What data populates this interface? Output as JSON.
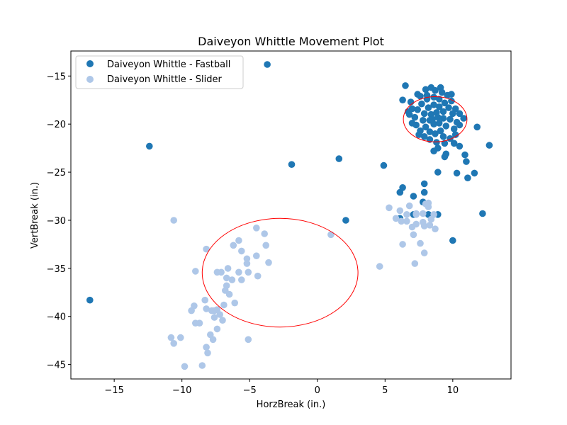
{
  "chart_data": {
    "type": "scatter",
    "title": "Daiveyon Whittle Movement Plot",
    "xlabel": "HorzBreak (in.)",
    "ylabel": "VertBreak (in.)",
    "xlim": [
      -18.2,
      14.3
    ],
    "ylim": [
      -46.5,
      -12.4
    ],
    "xticks": [
      -15,
      -10,
      -5,
      0,
      5,
      10
    ],
    "yticks": [
      -15,
      -20,
      -25,
      -30,
      -35,
      -40,
      -45
    ],
    "grid": false,
    "legend": {
      "placement": "top-left"
    },
    "series": [
      {
        "name": "Daiveyon Whittle - Fastball",
        "color": "#1f77b4",
        "points": [
          [
            -3.7,
            -13.8
          ],
          [
            -12.4,
            -22.3
          ],
          [
            -1.9,
            -24.2
          ],
          [
            1.6,
            -23.6
          ],
          [
            4.9,
            -24.3
          ],
          [
            2.1,
            -30.0
          ],
          [
            -16.8,
            -38.3
          ],
          [
            6.3,
            -26.6
          ],
          [
            7.9,
            -26.2
          ],
          [
            7.1,
            -27.5
          ],
          [
            7.9,
            -27.1
          ],
          [
            6.1,
            -27.1
          ],
          [
            7.8,
            -28.1
          ],
          [
            8.2,
            -29.4
          ],
          [
            8.9,
            -29.4
          ],
          [
            7.1,
            -29.4
          ],
          [
            6.1,
            -29.8
          ],
          [
            8.9,
            -25.0
          ],
          [
            10.3,
            -25.1
          ],
          [
            11.6,
            -25.1
          ],
          [
            11.1,
            -25.6
          ],
          [
            10.0,
            -32.1
          ],
          [
            12.2,
            -29.3
          ],
          [
            12.7,
            -22.2
          ],
          [
            11.8,
            -20.3
          ],
          [
            11.0,
            -23.9
          ],
          [
            10.9,
            -23.2
          ],
          [
            10.5,
            -22.3
          ],
          [
            10.1,
            -22.0
          ],
          [
            9.5,
            -23.1
          ],
          [
            9.4,
            -23.4
          ],
          [
            8.6,
            -22.8
          ],
          [
            8.9,
            -22.5
          ],
          [
            6.5,
            -16.0
          ],
          [
            6.3,
            -17.5
          ],
          [
            6.9,
            -17.7
          ],
          [
            6.7,
            -18.7
          ],
          [
            7.0,
            -18.4
          ],
          [
            7.4,
            -16.9
          ],
          [
            8.0,
            -16.4
          ],
          [
            8.4,
            -16.2
          ],
          [
            9.1,
            -16.2
          ],
          [
            9.2,
            -16.7
          ],
          [
            9.6,
            -17.0
          ],
          [
            9.9,
            -17.6
          ],
          [
            10.2,
            -18.4
          ],
          [
            10.5,
            -18.9
          ],
          [
            10.8,
            -19.4
          ],
          [
            10.5,
            -20.1
          ],
          [
            10.2,
            -21.1
          ],
          [
            9.8,
            -21.5
          ],
          [
            9.4,
            -22.0
          ],
          [
            8.8,
            -21.9
          ],
          [
            8.3,
            -21.6
          ],
          [
            7.9,
            -21.3
          ],
          [
            7.6,
            -20.7
          ],
          [
            7.3,
            -20.1
          ],
          [
            7.2,
            -19.3
          ],
          [
            7.4,
            -18.5
          ],
          [
            7.7,
            -17.9
          ],
          [
            8.1,
            -17.4
          ],
          [
            8.6,
            -17.2
          ],
          [
            9.0,
            -17.4
          ],
          [
            9.4,
            -17.8
          ],
          [
            9.7,
            -18.3
          ],
          [
            10.0,
            -18.9
          ],
          [
            9.8,
            -19.5
          ],
          [
            9.5,
            -20.2
          ],
          [
            9.1,
            -20.7
          ],
          [
            8.7,
            -21.0
          ],
          [
            8.3,
            -20.8
          ],
          [
            8.0,
            -20.3
          ],
          [
            7.8,
            -19.6
          ],
          [
            7.9,
            -18.9
          ],
          [
            8.2,
            -18.3
          ],
          [
            8.6,
            -18.0
          ],
          [
            9.0,
            -18.2
          ],
          [
            9.3,
            -18.7
          ],
          [
            9.3,
            -19.4
          ],
          [
            9.0,
            -19.9
          ],
          [
            8.6,
            -20.0
          ],
          [
            8.3,
            -19.6
          ],
          [
            8.4,
            -19.0
          ],
          [
            8.8,
            -18.8
          ],
          [
            8.9,
            -19.3
          ],
          [
            8.5,
            -19.5
          ],
          [
            8.1,
            -17.0
          ],
          [
            7.6,
            -17.1
          ],
          [
            9.3,
            -21.3
          ],
          [
            10.1,
            -20.5
          ],
          [
            7.0,
            -19.9
          ],
          [
            7.5,
            -21.1
          ],
          [
            6.8,
            -19.0
          ],
          [
            9.9,
            -16.9
          ],
          [
            8.7,
            -16.5
          ],
          [
            10.3,
            -19.8
          ]
        ]
      },
      {
        "name": "Daiveyon Whittle - Slider",
        "color": "#aec7e8",
        "points": [
          [
            -10.6,
            -30.0
          ],
          [
            1.0,
            -31.5
          ],
          [
            -4.5,
            -30.8
          ],
          [
            -3.9,
            -31.4
          ],
          [
            -5.8,
            -32.1
          ],
          [
            -6.2,
            -32.6
          ],
          [
            -3.8,
            -32.6
          ],
          [
            -8.2,
            -33.0
          ],
          [
            -5.6,
            -33.2
          ],
          [
            -5.2,
            -34.0
          ],
          [
            -4.5,
            -33.7
          ],
          [
            -3.6,
            -34.4
          ],
          [
            -5.2,
            -34.5
          ],
          [
            -9.0,
            -35.3
          ],
          [
            -7.4,
            -35.4
          ],
          [
            -7.1,
            -35.4
          ],
          [
            -6.6,
            -35.0
          ],
          [
            -5.8,
            -35.4
          ],
          [
            -5.1,
            -35.4
          ],
          [
            -6.7,
            -36.0
          ],
          [
            -6.3,
            -36.2
          ],
          [
            -5.6,
            -36.2
          ],
          [
            -4.4,
            -35.8
          ],
          [
            -6.7,
            -36.8
          ],
          [
            -6.8,
            -37.3
          ],
          [
            -6.5,
            -37.7
          ],
          [
            -8.3,
            -38.3
          ],
          [
            -6.1,
            -38.6
          ],
          [
            -6.9,
            -38.8
          ],
          [
            -9.1,
            -38.9
          ],
          [
            -8.2,
            -39.2
          ],
          [
            -7.8,
            -39.4
          ],
          [
            -7.6,
            -39.4
          ],
          [
            -7.4,
            -39.3
          ],
          [
            -9.3,
            -39.4
          ],
          [
            -7.2,
            -39.8
          ],
          [
            -7.6,
            -40.1
          ],
          [
            -7.0,
            -40.4
          ],
          [
            -9.0,
            -40.7
          ],
          [
            -8.7,
            -40.7
          ],
          [
            -7.4,
            -41.3
          ],
          [
            -7.9,
            -41.9
          ],
          [
            -7.7,
            -42.4
          ],
          [
            -10.8,
            -42.2
          ],
          [
            -10.1,
            -42.2
          ],
          [
            -5.1,
            -42.4
          ],
          [
            -10.6,
            -42.8
          ],
          [
            -8.2,
            -43.2
          ],
          [
            -8.1,
            -43.8
          ],
          [
            -9.8,
            -45.2
          ],
          [
            -8.5,
            -45.1
          ],
          [
            4.6,
            -34.8
          ],
          [
            5.3,
            -28.7
          ],
          [
            6.1,
            -29.0
          ],
          [
            5.8,
            -29.8
          ],
          [
            6.6,
            -29.4
          ],
          [
            6.6,
            -30.1
          ],
          [
            6.8,
            -28.5
          ],
          [
            7.3,
            -29.3
          ],
          [
            7.3,
            -29.4
          ],
          [
            7.8,
            -29.3
          ],
          [
            8.0,
            -28.3
          ],
          [
            8.2,
            -28.2
          ],
          [
            8.2,
            -28.6
          ],
          [
            8.6,
            -29.4
          ],
          [
            7.0,
            -30.7
          ],
          [
            7.3,
            -30.4
          ],
          [
            7.8,
            -30.2
          ],
          [
            7.9,
            -30.6
          ],
          [
            8.3,
            -30.5
          ],
          [
            8.7,
            -30.9
          ],
          [
            7.1,
            -31.5
          ],
          [
            6.3,
            -32.5
          ],
          [
            7.6,
            -32.4
          ],
          [
            7.9,
            -33.4
          ],
          [
            7.2,
            -34.5
          ],
          [
            6.2,
            -30.1
          ],
          [
            8.4,
            -29.9
          ]
        ]
      }
    ],
    "annotations": [
      {
        "shape": "ellipse",
        "color": "#ff0000",
        "center": [
          -2.75,
          -35.45
        ],
        "radii": [
          5.75,
          5.65
        ]
      },
      {
        "shape": "ellipse",
        "color": "#ff0000",
        "center": [
          8.7,
          -19.5
        ],
        "radii": [
          2.35,
          2.35
        ]
      }
    ]
  }
}
